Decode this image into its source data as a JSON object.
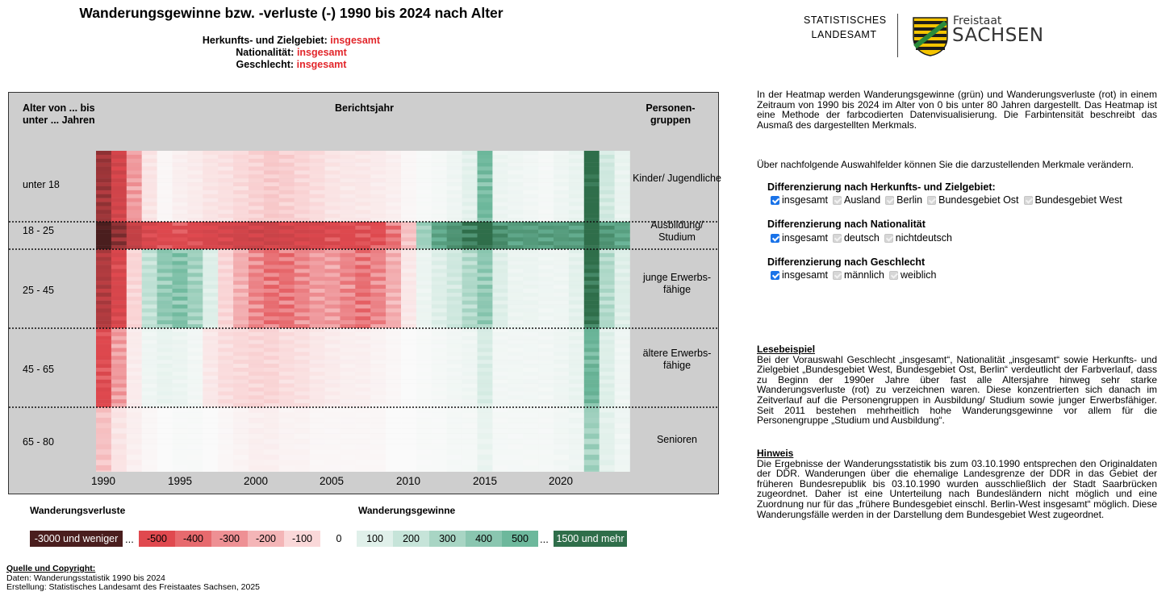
{
  "title": "Wanderungsgewinne bzw. -verluste (-) 1990 bis 2024 nach Alter",
  "filters": [
    {
      "label": "Herkunfts- und Zielgebiet:",
      "value": "insgesamt"
    },
    {
      "label": "Nationalität:",
      "value": "insgesamt"
    },
    {
      "label": "Geschlecht:",
      "value": "insgesamt"
    }
  ],
  "chart": {
    "header_age": "Alter von ... bis unter ... Jahren",
    "header_year": "Berichtsjahr",
    "header_groups": "Personen- gruppen",
    "age_labels": [
      "unter 18",
      "18 - 25",
      "25 - 45",
      "45 - 65",
      "65 - 80"
    ],
    "group_labels": [
      "Kinder/ Jugendliche",
      "Ausbildung/ Studium",
      "junge Erwerbs- fähige",
      "ältere Erwerbs- fähige",
      "Senioren"
    ],
    "year_ticks": [
      "1990",
      "1995",
      "2000",
      "2005",
      "2010",
      "2015",
      "2020"
    ]
  },
  "legend": {
    "loss_title": "Wanderungsverluste",
    "gain_title": "Wanderungsgewinne",
    "loss_items": [
      {
        "label": "-3000 und weniger",
        "color": "#4a1e1e",
        "text_color": "#ffffff"
      },
      {
        "label": "-500",
        "color": "#e0494f",
        "text_color": "#000000"
      },
      {
        "label": "-400",
        "color": "#e76a6e",
        "text_color": "#000000"
      },
      {
        "label": "-300",
        "color": "#ee9094",
        "text_color": "#000000"
      },
      {
        "label": "-200",
        "color": "#f4b5b7",
        "text_color": "#000000"
      },
      {
        "label": "-100",
        "color": "#fad8d9",
        "text_color": "#000000"
      }
    ],
    "zero_label": "0",
    "gain_items": [
      {
        "label": "100",
        "color": "#e0f0ea",
        "text_color": "#000000"
      },
      {
        "label": "200",
        "color": "#c6e4d9",
        "text_color": "#000000"
      },
      {
        "label": "300",
        "color": "#a8d5c4",
        "text_color": "#000000"
      },
      {
        "label": "400",
        "color": "#8ac6b0",
        "text_color": "#000000"
      },
      {
        "label": "500",
        "color": "#6db89c",
        "text_color": "#000000"
      },
      {
        "label": "1500 und mehr",
        "color": "#2f6e4a",
        "text_color": "#ffffff"
      }
    ],
    "ellipsis": "..."
  },
  "source": {
    "title": "Quelle und Copyright:",
    "line1": "Daten: Wanderungsstatistik 1990 bis 2024",
    "line2": "Erstellung: Statistisches Landesamt des Freistaates Sachsen, 2025"
  },
  "logo": {
    "line1": "STATISTISCHES",
    "line2": "LANDESAMT",
    "freistaat": "Freistaat",
    "sachsen": "SACHSEN"
  },
  "intro": "In der Heatmap werden Wanderungsgewinne (grün) und Wanderungsverluste (rot) in einem Zeitraum von 1990 bis 2024 im Alter von 0 bis unter 80 Jahren dargestellt. Das Heatmap ist eine Methode der farbcodierten Datenvisualisierung. Die Farbintensität beschreibt das Ausmaß des dargestellten Merkmals.",
  "select_intro": "Über nachfolgende Auswahlfelder können Sie die darzustellenden Merkmale verändern.",
  "selectors": [
    {
      "title": "Differenzierung nach Herkunfts- und Zielgebiet:",
      "options": [
        {
          "label": "insgesamt",
          "checked": true
        },
        {
          "label": "Ausland",
          "checked": false
        },
        {
          "label": "Berlin",
          "checked": false
        },
        {
          "label": "Bundesgebiet Ost",
          "checked": false
        },
        {
          "label": "Bundesgebiet West",
          "checked": false
        }
      ]
    },
    {
      "title": "Differenzierung nach Nationalität",
      "options": [
        {
          "label": "insgesamt",
          "checked": true
        },
        {
          "label": "deutsch",
          "checked": false
        },
        {
          "label": "nichtdeutsch",
          "checked": false
        }
      ]
    },
    {
      "title": "Differenzierung nach Geschlecht",
      "options": [
        {
          "label": "insgesamt",
          "checked": true
        },
        {
          "label": "männlich",
          "checked": false
        },
        {
          "label": "weiblich",
          "checked": false
        }
      ]
    }
  ],
  "lesebeispiel": {
    "title": "Lesebeispiel",
    "text": "Bei der Vorauswahl Geschlecht „insgesamt“, Nationalität „insgesamt“ sowie Herkunfts- und Zielgebiet „Bundesgebiet West, Bundesgebiet Ost, Berlin“ verdeutlicht der Farbverlauf, dass zu Beginn der 1990er Jahre über fast alle Altersjahre hinweg sehr starke Wanderungsverluste (rot) zu verzeichnen waren. Diese konzentrierten sich danach im Zeitverlauf auf die Personengruppen in Ausbildung/ Studium sowie junger Erwerbsfähiger. Seit 2011 bestehen mehrheitlich hohe Wanderungsgewinne vor allem für die Personengruppe „Studium und Ausbildung“."
  },
  "hinweis": {
    "title": "Hinweis",
    "text": "Die Ergebnisse der Wanderungsstatistik bis zum 03.10.1990 entsprechen den Originaldaten der DDR. Wanderungen über die ehemalige Landesgrenze der DDR in das Gebiet der früheren Bundesrepublik bis 03.10.1990 wurden ausschließlich der Stadt Saarbrücken zugeordnet. Daher ist eine Unterteilung nach Bundesländern nicht möglich und eine Zuordnung nur für das „frühere Bundesgebiet einschl. Berlin-West insgesamt“ möglich. Diese Wanderungsfälle werden in der Darstellung dem Bundesgebiet West zugeordnet."
  },
  "chart_data": {
    "type": "heatmap",
    "title": "Wanderungsgewinne bzw. -verluste (-) 1990 bis 2024 nach Alter",
    "xlabel": "Berichtsjahr",
    "ylabel": "Alter von ... bis unter ... Jahren",
    "x": [
      1990,
      1991,
      1992,
      1993,
      1994,
      1995,
      1996,
      1997,
      1998,
      1999,
      2000,
      2001,
      2002,
      2003,
      2004,
      2005,
      2006,
      2007,
      2008,
      2009,
      2010,
      2011,
      2012,
      2013,
      2014,
      2015,
      2016,
      2017,
      2018,
      2019,
      2020,
      2021,
      2022,
      2023,
      2024
    ],
    "y_groups": [
      "unter 18",
      "18 - 25",
      "25 - 45",
      "45 - 65",
      "65 - 80"
    ],
    "group_names": [
      "Kinder/ Jugendliche",
      "Ausbildung/ Studium",
      "junge Erwerbsfähige",
      "ältere Erwerbsfähige",
      "Senioren"
    ],
    "values": [
      [
        -1500,
        -700,
        -250,
        -60,
        -10,
        -30,
        -40,
        -60,
        -70,
        -90,
        -110,
        -130,
        -120,
        -100,
        -80,
        -60,
        -50,
        -50,
        -40,
        -30,
        -10,
        10,
        20,
        40,
        80,
        450,
        50,
        40,
        30,
        20,
        40,
        60,
        1600,
        150,
        60
      ],
      [
        -3200,
        -1800,
        -900,
        -600,
        -500,
        -500,
        -550,
        -600,
        -650,
        -700,
        -750,
        -750,
        -700,
        -650,
        -600,
        -550,
        -500,
        -500,
        -450,
        -350,
        -150,
        300,
        700,
        900,
        1200,
        1600,
        1000,
        800,
        800,
        800,
        800,
        800,
        1700,
        900,
        700
      ],
      [
        -1200,
        -600,
        -100,
        200,
        350,
        400,
        300,
        100,
        -100,
        -200,
        -300,
        -350,
        -350,
        -300,
        -250,
        -250,
        -300,
        -350,
        -300,
        -200,
        -50,
        50,
        100,
        150,
        250,
        350,
        100,
        50,
        50,
        40,
        40,
        80,
        1400,
        250,
        100
      ],
      [
        -500,
        -250,
        -40,
        40,
        60,
        50,
        30,
        -50,
        -80,
        -90,
        -100,
        -100,
        -80,
        -70,
        -50,
        -40,
        -30,
        -30,
        -20,
        -10,
        0,
        10,
        20,
        30,
        40,
        120,
        30,
        30,
        30,
        30,
        40,
        60,
        500,
        100,
        40
      ],
      [
        -150,
        -60,
        -30,
        -10,
        0,
        10,
        10,
        0,
        -10,
        -20,
        -30,
        -30,
        -20,
        -20,
        -10,
        -10,
        -10,
        -10,
        -10,
        0,
        0,
        10,
        10,
        20,
        20,
        60,
        20,
        20,
        20,
        20,
        30,
        40,
        300,
        80,
        40
      ]
    ]
  }
}
